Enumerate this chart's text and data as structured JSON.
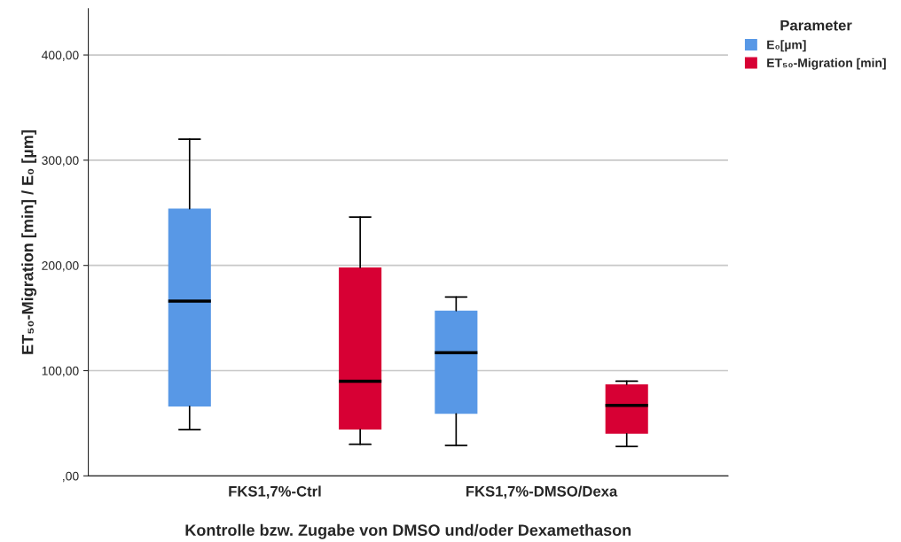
{
  "chart_data": {
    "type": "box",
    "xlabel": "Kontrolle bzw. Zugabe von DMSO und/oder Dexamethason",
    "ylabel": "ET₅₀-Migration [min] / E₀ [µm]",
    "legend_title": "Parameter",
    "categories": [
      "FKS1,7%-Ctrl",
      "FKS1,7%-DMSO/Dexa"
    ],
    "series": [
      {
        "name": "E₀[µm]",
        "color": "#5898e6",
        "boxes": [
          {
            "low": 44,
            "q1": 66,
            "median": 166,
            "q3": 254,
            "high": 320
          },
          {
            "low": 29,
            "q1": 59,
            "median": 117,
            "q3": 157,
            "high": 170
          }
        ]
      },
      {
        "name": "ET₅₀-Migration [min]",
        "color": "#d70034",
        "boxes": [
          {
            "low": 30,
            "q1": 44,
            "median": 90,
            "q3": 198,
            "high": 246
          },
          {
            "low": 28,
            "q1": 40,
            "median": 67,
            "q3": 87,
            "high": 90
          }
        ]
      }
    ],
    "ylim": [
      0,
      444
    ],
    "yticks": [
      {
        "value": 0,
        "label": ",00"
      },
      {
        "value": 100,
        "label": "100,00"
      },
      {
        "value": 200,
        "label": "200,00"
      },
      {
        "value": 300,
        "label": "300,00"
      },
      {
        "value": 400,
        "label": "400,00"
      }
    ],
    "grid": "y",
    "legend": "top right"
  }
}
